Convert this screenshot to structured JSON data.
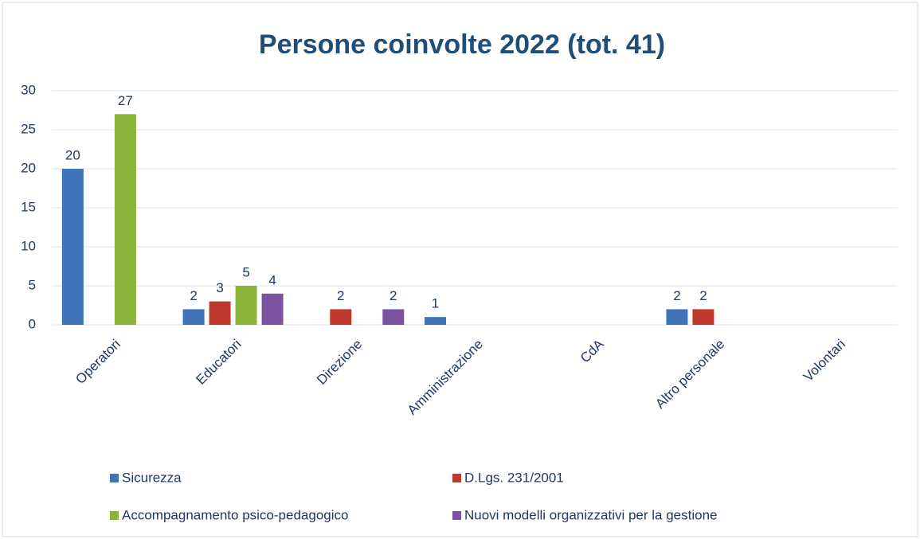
{
  "chart_data": {
    "type": "bar",
    "title": "Persone coinvolte 2022 (tot. 41)",
    "categories": [
      "Operatori",
      "Educatori",
      "Direzione",
      "Amministrazione",
      "CdA",
      "Altro personale",
      "Volontari"
    ],
    "series": [
      {
        "name": "Sicurezza",
        "color": "#3f74bb",
        "values": [
          20,
          2,
          null,
          1,
          null,
          2,
          null
        ]
      },
      {
        "name": "D.Lgs. 231/2001",
        "color": "#c0392f",
        "values": [
          null,
          3,
          2,
          null,
          null,
          2,
          null
        ]
      },
      {
        "name": "Accompagnamento psico-pedagogico",
        "color": "#8cb43a",
        "values": [
          27,
          5,
          null,
          null,
          null,
          null,
          null
        ]
      },
      {
        "name": "Nuovi modelli organizzativi per la gestione",
        "color": "#7a54a0",
        "values": [
          null,
          4,
          2,
          null,
          null,
          null,
          null
        ]
      }
    ],
    "ylim": [
      0,
      30
    ],
    "yticks": [
      0,
      5,
      10,
      15,
      20,
      25,
      30
    ],
    "grid": true,
    "legend": "bottom"
  }
}
